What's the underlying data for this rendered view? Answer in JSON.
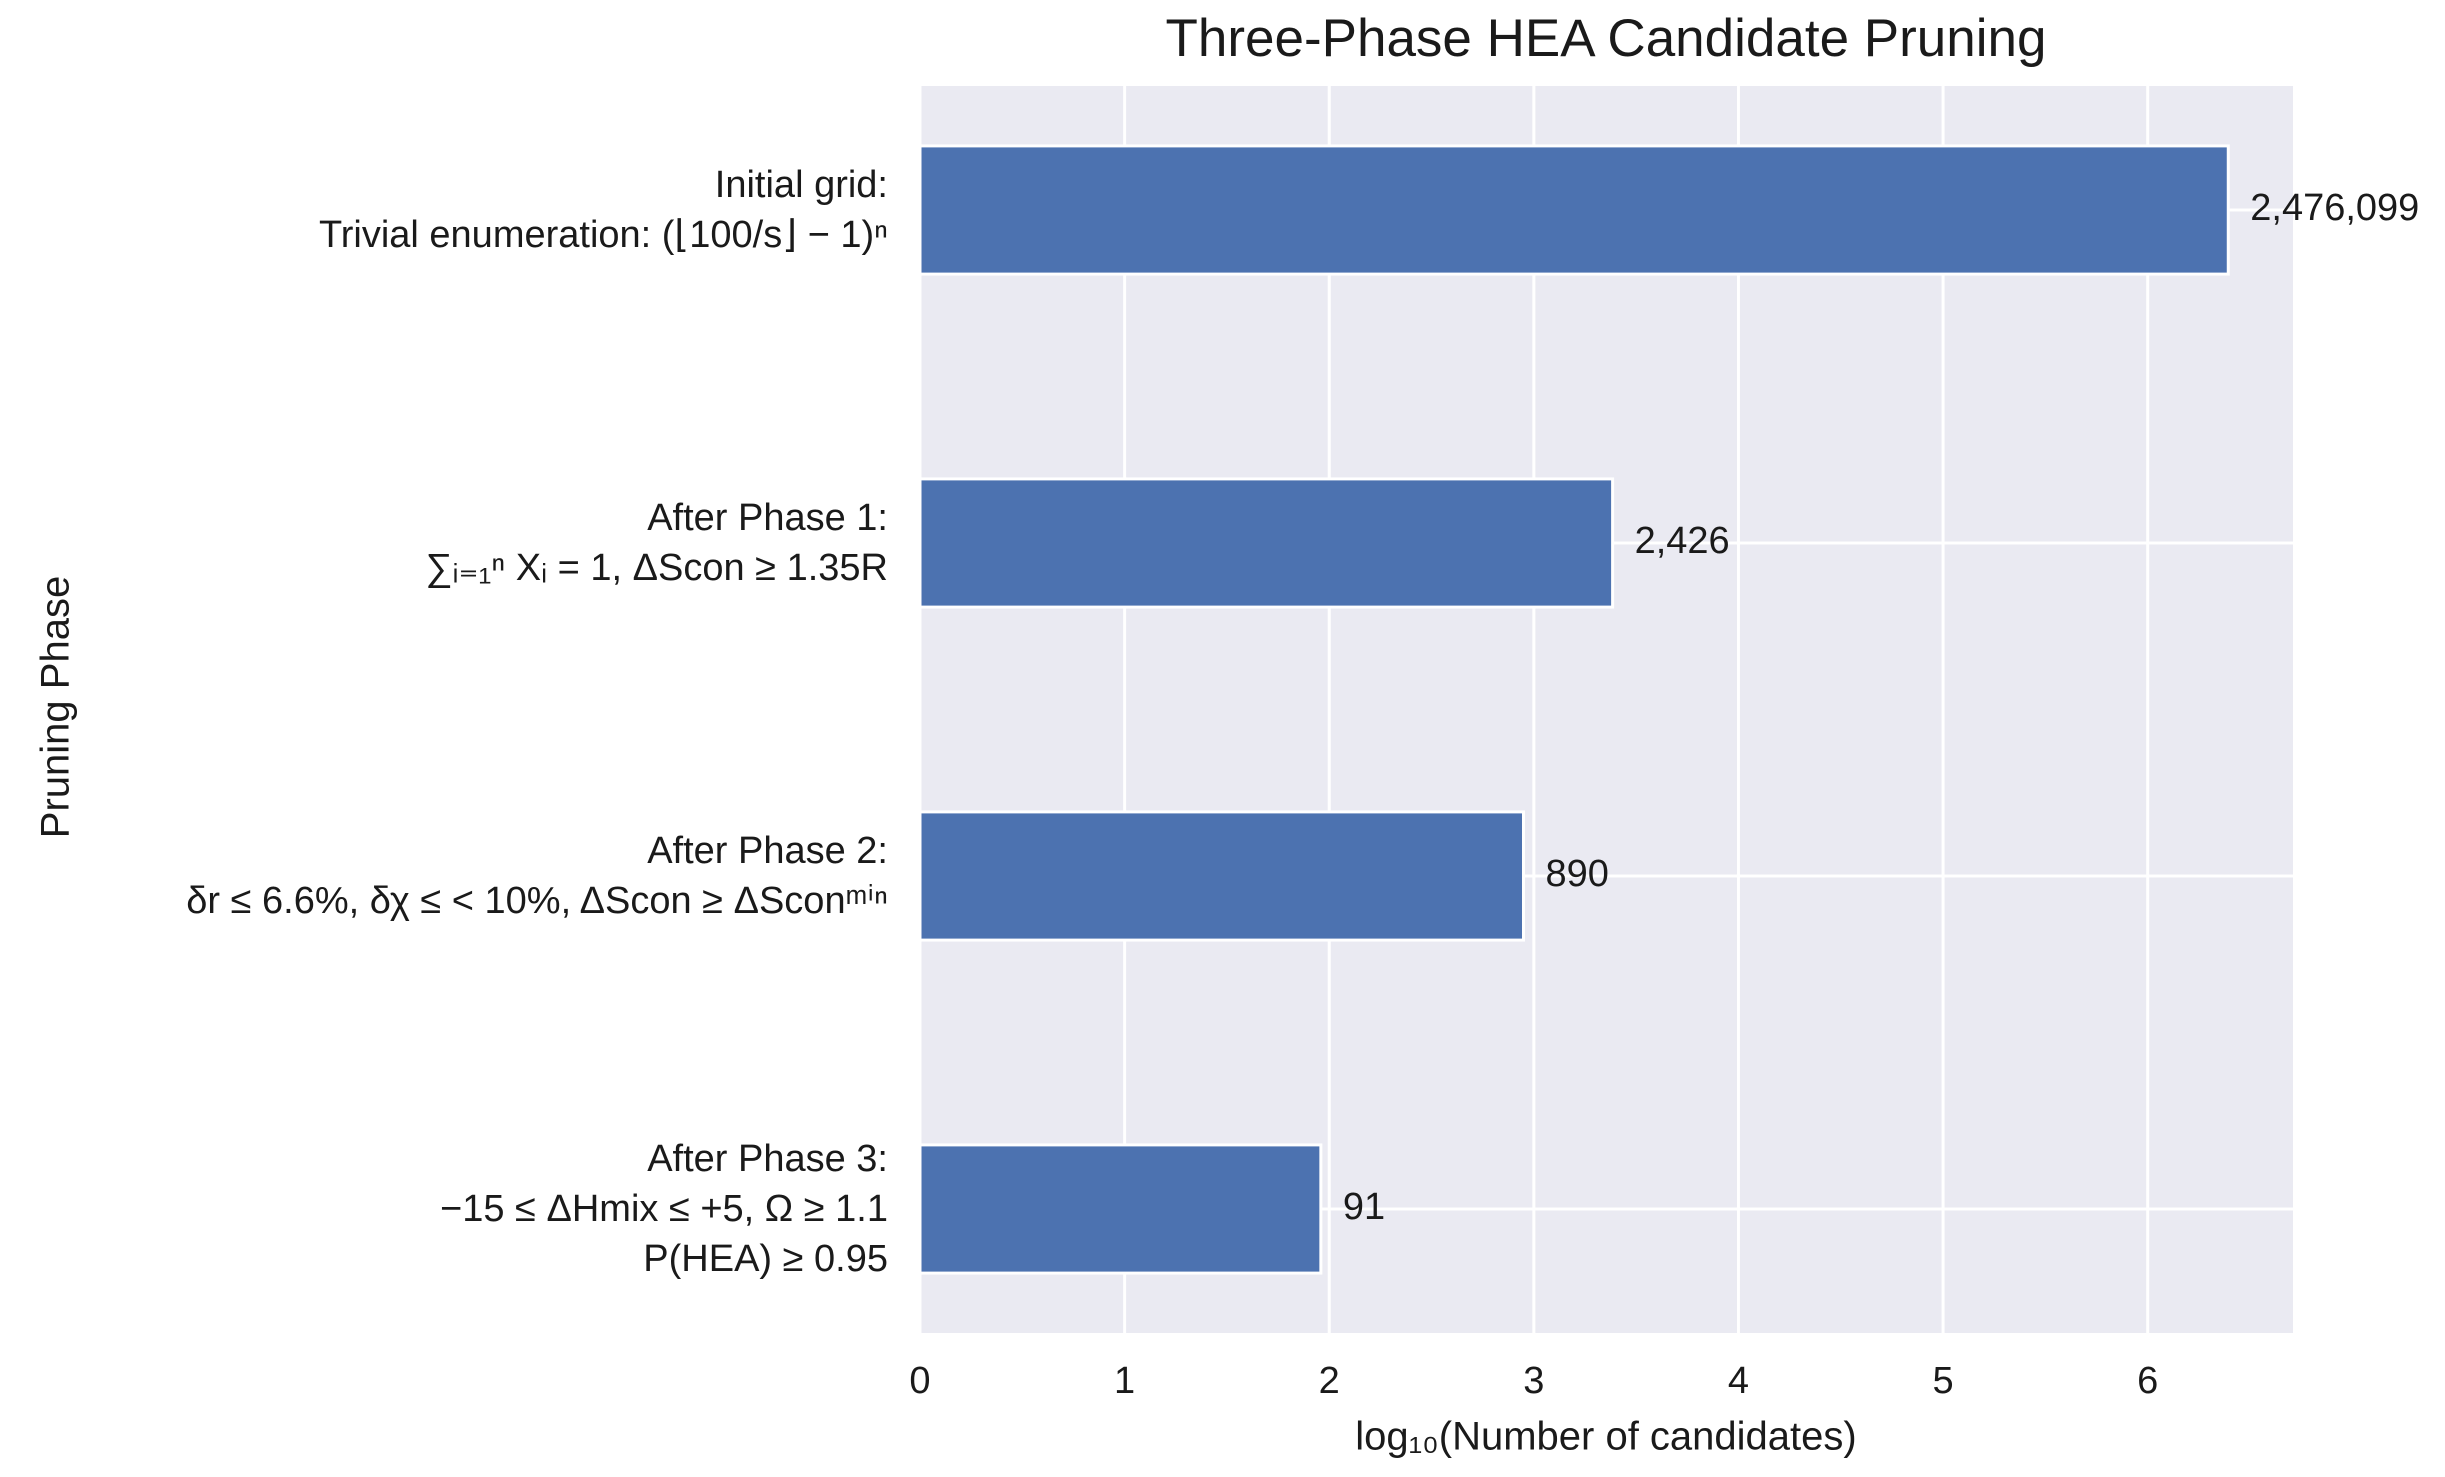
{
  "chart_data": {
    "type": "barh",
    "title": "Three-Phase HEA Candidate Pruning",
    "xlabel": "log₁₀(Number of candidates)",
    "ylabel": "Pruning Phase",
    "categories": [
      "Initial grid:\nTrivial enumeration: (⌊100/s⌋ − 1)ⁿ",
      "After Phase 1:\n∑ᵢ₌₁ⁿ Xᵢ = 1, ΔScon ≥ 1.35R",
      "After Phase 2:\nδr ≤ 6.6%, δχ ≤ < 10%, ΔScon ≥ ΔSconᵐⁱⁿ",
      "After Phase 3:\n−15 ≤ ΔHmix ≤ +5, Ω ≥ 1.1\nP(HEA) ≥ 0.95"
    ],
    "values": [
      2476099,
      2426,
      890,
      91
    ],
    "value_labels": [
      "2,476,099",
      "2,426",
      "890",
      "91"
    ],
    "color": "#4c72b0",
    "xscale": "log",
    "xlim": [
      1,
      5130000
    ],
    "xticks": [
      {
        "value": 1,
        "label": "0"
      },
      {
        "value": 10,
        "label": "1"
      },
      {
        "value": 100,
        "label": "2"
      },
      {
        "value": 1000,
        "label": "3"
      },
      {
        "value": 10000,
        "label": "4"
      },
      {
        "value": 100000,
        "label": "5"
      },
      {
        "value": 1000000,
        "label": "6"
      }
    ],
    "grid": true
  }
}
